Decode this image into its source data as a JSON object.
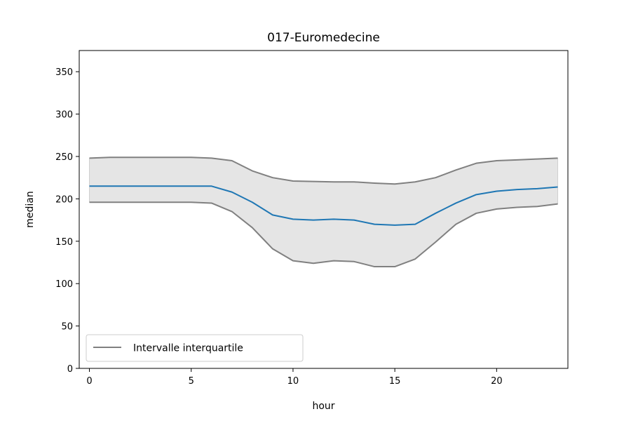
{
  "chart_data": {
    "type": "line",
    "title": "017-Euromedecine",
    "xlabel": "hour",
    "ylabel": "median",
    "xlim": [
      -0.5,
      23.5
    ],
    "ylim": [
      0,
      375
    ],
    "x_ticks": [
      0,
      5,
      10,
      15,
      20
    ],
    "y_ticks": [
      0,
      50,
      100,
      150,
      200,
      250,
      300,
      350
    ],
    "x": [
      0,
      1,
      2,
      3,
      4,
      5,
      6,
      7,
      8,
      9,
      10,
      11,
      12,
      13,
      14,
      15,
      16,
      17,
      18,
      19,
      20,
      21,
      22,
      23
    ],
    "series": [
      {
        "values": [
          215,
          215,
          215,
          215,
          215,
          215,
          215,
          208,
          196,
          181,
          176,
          175,
          176,
          175,
          170,
          169,
          170,
          183,
          195,
          205,
          209,
          211,
          212,
          214
        ],
        "color": "#1f77b4"
      },
      {
        "name": "Intervalle interquartile",
        "role": "lower_quartile",
        "values": [
          196,
          196,
          196,
          196,
          196,
          196,
          195,
          185,
          166,
          141,
          127,
          124,
          127,
          126,
          120,
          120,
          129,
          149,
          170,
          183,
          188,
          190,
          191,
          194
        ],
        "color": "#808080"
      },
      {
        "role": "upper_quartile",
        "values": [
          248,
          249,
          249,
          249,
          249,
          249,
          248,
          245,
          233,
          225,
          221,
          220.5,
          220,
          220,
          218.5,
          217.5,
          220,
          225,
          234,
          242,
          245,
          246,
          247,
          248
        ],
        "color": "#808080"
      }
    ],
    "band_fill_color": "#e5e5e5",
    "legend": {
      "placement": "lower-left",
      "entries": [
        "Intervalle interquartile"
      ]
    },
    "grid": false
  }
}
